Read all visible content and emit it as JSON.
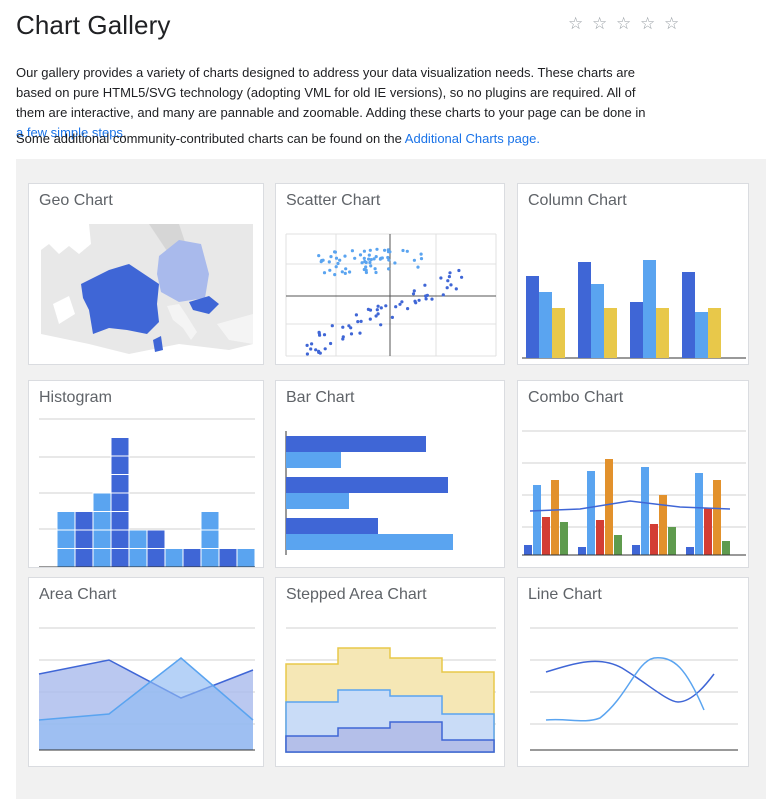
{
  "page": {
    "title": "Chart Gallery",
    "rating_stars": [
      "☆",
      "☆",
      "☆",
      "☆",
      "☆"
    ]
  },
  "intro": {
    "text": "Our gallery provides a variety of charts designed to address your data visualization needs. These charts are based on pure HTML5/SVG technology (adopting VML for old IE versions), so no plugins are required. All of them are interactive, and many are pannable and zoomable. Adding these charts to your page can be done in ",
    "link": "a few simple steps",
    "end": "."
  },
  "community": {
    "text": "Some additional community-contributed charts can be found on the ",
    "link": "Additional Charts page."
  },
  "cards": [
    {
      "label": "Geo Chart"
    },
    {
      "label": "Scatter Chart"
    },
    {
      "label": "Column Chart"
    },
    {
      "label": "Histogram"
    },
    {
      "label": "Bar Chart"
    },
    {
      "label": "Combo Chart"
    },
    {
      "label": "Area Chart"
    },
    {
      "label": "Stepped Area Chart"
    },
    {
      "label": "Line Chart"
    }
  ],
  "colors": {
    "blue": "#3366cc",
    "royal": "#4a6fd8",
    "light_blue": "#5aa4f0",
    "yellow": "#e8c84a",
    "red": "#d33d34",
    "orange": "#e2912c",
    "green": "#5f9b4e",
    "gray_line": "#cccccc",
    "link": "#1a73e8"
  }
}
